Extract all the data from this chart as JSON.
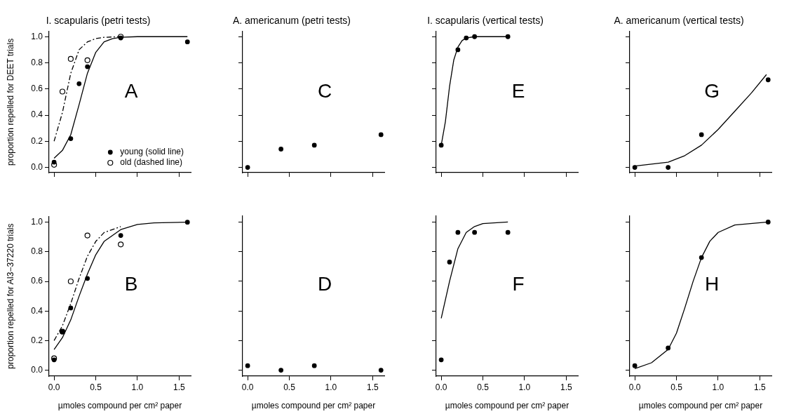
{
  "chart_data": [
    {
      "type": "scatter",
      "title": "I. scapularis (petri tests)",
      "ylabel": "proportion repelled for DEET trials",
      "xlim": [
        -0.06,
        1.64
      ],
      "ylim": [
        -0.04,
        1.04
      ],
      "xticks": [
        {
          "value": 0,
          "label": null
        },
        {
          "value": 0.5,
          "label": null
        },
        {
          "value": 1,
          "label": null
        },
        {
          "value": 1.5,
          "label": null
        }
      ],
      "yticks": [
        {
          "value": 0,
          "label": "0.0"
        },
        {
          "value": 0.2,
          "label": "0.2"
        },
        {
          "value": 0.4,
          "label": "0.4"
        },
        {
          "value": 0.6,
          "label": "0.6"
        },
        {
          "value": 0.8,
          "label": "0.8"
        },
        {
          "value": 1,
          "label": "1.0"
        }
      ],
      "tick_labels": "y",
      "legend": "bottom right",
      "annotations": [
        "A"
      ],
      "series": [
        {
          "name": "young (solid line)",
          "color": "#000000",
          "marker": "circle",
          "x": [
            0,
            0.2,
            0.3,
            0.4,
            0.8,
            1.6
          ],
          "values": [
            0.04,
            0.22,
            0.64,
            0.77,
            0.99,
            0.96
          ]
        },
        {
          "name": "old (dashed line)",
          "color": "#000000",
          "marker": "circle",
          "x": [
            0,
            0.1,
            0.2,
            0.4,
            0.8
          ],
          "values": [
            0.02,
            0.58,
            0.83,
            0.82,
            1.0
          ]
        },
        {
          "type": "line",
          "color": "#000000",
          "line_style": "solid",
          "x": [
            0,
            0.1,
            0.2,
            0.3,
            0.4,
            0.5,
            0.6,
            0.7,
            0.8,
            1.0,
            1.6
          ],
          "values": [
            0.07,
            0.13,
            0.25,
            0.48,
            0.72,
            0.88,
            0.96,
            0.985,
            0.995,
            1.0,
            1.0
          ]
        },
        {
          "type": "line",
          "color": "#000000",
          "line_style": "dashed",
          "x": [
            0,
            0.1,
            0.2,
            0.3,
            0.4,
            0.5,
            0.6,
            0.8
          ],
          "values": [
            0.2,
            0.42,
            0.72,
            0.9,
            0.96,
            0.985,
            0.995,
            1.0
          ]
        }
      ]
    },
    {
      "type": "scatter",
      "title": "A. americanum (petri tests)",
      "xlim": [
        -0.06,
        1.64
      ],
      "ylim": [
        -0.04,
        1.04
      ],
      "xticks": [
        {
          "value": 0,
          "label": null
        },
        {
          "value": 0.5,
          "label": null
        },
        {
          "value": 1,
          "label": null
        },
        {
          "value": 1.5,
          "label": null
        }
      ],
      "yticks": [
        {
          "value": 0,
          "label": null
        },
        {
          "value": 0.2,
          "label": null
        },
        {
          "value": 0.4,
          "label": null
        },
        {
          "value": 0.6,
          "label": null
        },
        {
          "value": 0.8,
          "label": null
        },
        {
          "value": 1,
          "label": null
        }
      ],
      "tick_labels": false,
      "annotations": [
        "C"
      ],
      "series": [
        {
          "color": "#000000",
          "marker": "circle",
          "x": [
            0,
            0.4,
            0.8,
            1.6
          ],
          "values": [
            0,
            0.14,
            0.17,
            0.25
          ]
        }
      ]
    },
    {
      "type": "scatter",
      "title": "I. scapularis (vertical tests)",
      "xlim": [
        -0.06,
        1.64
      ],
      "ylim": [
        -0.04,
        1.04
      ],
      "xticks": [
        {
          "value": 0,
          "label": null
        },
        {
          "value": 0.5,
          "label": null
        },
        {
          "value": 1,
          "label": null
        },
        {
          "value": 1.5,
          "label": null
        }
      ],
      "yticks": [
        {
          "value": 0,
          "label": null
        },
        {
          "value": 0.2,
          "label": null
        },
        {
          "value": 0.4,
          "label": null
        },
        {
          "value": 0.6,
          "label": null
        },
        {
          "value": 0.8,
          "label": null
        },
        {
          "value": 1,
          "label": null
        }
      ],
      "tick_labels": false,
      "annotations": [
        "E"
      ],
      "series": [
        {
          "color": "#000000",
          "marker": "circle",
          "x": [
            0,
            0.2,
            0.3,
            0.4,
            0.8
          ],
          "values": [
            0.17,
            0.9,
            0.99,
            1.0,
            1.0
          ]
        },
        {
          "type": "line",
          "color": "#000000",
          "line_style": "solid",
          "x": [
            0,
            0.05,
            0.1,
            0.15,
            0.2,
            0.25,
            0.3,
            0.4,
            0.8
          ],
          "values": [
            0.17,
            0.35,
            0.62,
            0.82,
            0.92,
            0.97,
            0.99,
            1.0,
            1.0
          ]
        }
      ]
    },
    {
      "type": "scatter",
      "title": "A. americanum (vertical tests)",
      "xlim": [
        -0.06,
        1.64
      ],
      "ylim": [
        -0.04,
        1.04
      ],
      "xticks": [
        {
          "value": 0,
          "label": null
        },
        {
          "value": 0.5,
          "label": null
        },
        {
          "value": 1,
          "label": null
        },
        {
          "value": 1.5,
          "label": null
        }
      ],
      "yticks": [
        {
          "value": 0,
          "label": null
        },
        {
          "value": 0.2,
          "label": null
        },
        {
          "value": 0.4,
          "label": null
        },
        {
          "value": 0.6,
          "label": null
        },
        {
          "value": 0.8,
          "label": null
        },
        {
          "value": 1,
          "label": null
        }
      ],
      "tick_labels": false,
      "annotations": [
        "G"
      ],
      "series": [
        {
          "color": "#000000",
          "marker": "circle",
          "x": [
            0,
            0.4,
            0.8,
            1.6
          ],
          "values": [
            0,
            0,
            0.25,
            0.67
          ]
        },
        {
          "type": "line",
          "color": "#000000",
          "line_style": "solid",
          "x": [
            0,
            0.4,
            0.6,
            0.8,
            1.0,
            1.2,
            1.4,
            1.58
          ],
          "values": [
            0.01,
            0.04,
            0.09,
            0.17,
            0.29,
            0.43,
            0.57,
            0.71
          ]
        }
      ]
    },
    {
      "type": "scatter",
      "xlabel": "µmoles compound per cm² paper",
      "ylabel": "proportion repelled for AI3−37220 trials",
      "xlim": [
        -0.06,
        1.64
      ],
      "ylim": [
        -0.04,
        1.04
      ],
      "xticks": [
        {
          "value": 0,
          "label": "0.0"
        },
        {
          "value": 0.5,
          "label": "0.5"
        },
        {
          "value": 1,
          "label": "1.0"
        },
        {
          "value": 1.5,
          "label": "1.5"
        }
      ],
      "yticks": [
        {
          "value": 0,
          "label": "0.0"
        },
        {
          "value": 0.2,
          "label": "0.2"
        },
        {
          "value": 0.4,
          "label": "0.4"
        },
        {
          "value": 0.6,
          "label": "0.6"
        },
        {
          "value": 0.8,
          "label": "0.8"
        },
        {
          "value": 1,
          "label": "1.0"
        }
      ],
      "annotations": [
        "B"
      ],
      "series": [
        {
          "color": "#000000",
          "marker": "circle",
          "x": [
            0,
            0.1,
            0.2,
            0.4,
            0.8,
            1.6
          ],
          "values": [
            0.07,
            0.26,
            0.42,
            0.62,
            0.91,
            1.0
          ]
        },
        {
          "color": "#000000",
          "marker": "circle",
          "x": [
            0,
            0.1,
            0.2,
            0.4,
            0.8
          ],
          "values": [
            0.08,
            0.26,
            0.6,
            0.91,
            0.85
          ]
        },
        {
          "type": "line",
          "color": "#000000",
          "line_style": "solid",
          "x": [
            0,
            0.1,
            0.2,
            0.3,
            0.4,
            0.5,
            0.6,
            0.8,
            1.0,
            1.2,
            1.6
          ],
          "values": [
            0.14,
            0.22,
            0.34,
            0.5,
            0.65,
            0.78,
            0.87,
            0.95,
            0.985,
            0.995,
            1.0
          ]
        },
        {
          "type": "line",
          "color": "#000000",
          "line_style": "dashed",
          "x": [
            0,
            0.1,
            0.2,
            0.3,
            0.4,
            0.5,
            0.6,
            0.8
          ],
          "values": [
            0.2,
            0.3,
            0.45,
            0.62,
            0.77,
            0.87,
            0.93,
            0.97
          ]
        }
      ]
    },
    {
      "type": "scatter",
      "xlabel": "µmoles compound per cm² paper",
      "xlim": [
        -0.06,
        1.64
      ],
      "ylim": [
        -0.04,
        1.04
      ],
      "xticks": [
        {
          "value": 0,
          "label": "0.0"
        },
        {
          "value": 0.5,
          "label": "0.5"
        },
        {
          "value": 1,
          "label": "1.0"
        },
        {
          "value": 1.5,
          "label": "1.5"
        }
      ],
      "yticks": [
        {
          "value": 0,
          "label": null
        },
        {
          "value": 0.2,
          "label": null
        },
        {
          "value": 0.4,
          "label": null
        },
        {
          "value": 0.6,
          "label": null
        },
        {
          "value": 0.8,
          "label": null
        },
        {
          "value": 1,
          "label": null
        }
      ],
      "tick_labels": "x",
      "annotations": [
        "D"
      ],
      "series": [
        {
          "color": "#000000",
          "marker": "circle",
          "x": [
            0,
            0.4,
            0.8,
            1.6
          ],
          "values": [
            0.03,
            0,
            0.03,
            0
          ]
        }
      ]
    },
    {
      "type": "scatter",
      "xlabel": "µmoles compound per cm² paper",
      "xlim": [
        -0.06,
        1.64
      ],
      "ylim": [
        -0.04,
        1.04
      ],
      "xticks": [
        {
          "value": 0,
          "label": "0.0"
        },
        {
          "value": 0.5,
          "label": "0.5"
        },
        {
          "value": 1,
          "label": "1.0"
        },
        {
          "value": 1.5,
          "label": "1.5"
        }
      ],
      "yticks": [
        {
          "value": 0,
          "label": null
        },
        {
          "value": 0.2,
          "label": null
        },
        {
          "value": 0.4,
          "label": null
        },
        {
          "value": 0.6,
          "label": null
        },
        {
          "value": 0.8,
          "label": null
        },
        {
          "value": 1,
          "label": null
        }
      ],
      "tick_labels": "x",
      "annotations": [
        "F"
      ],
      "series": [
        {
          "color": "#000000",
          "marker": "circle",
          "x": [
            0,
            0.1,
            0.2,
            0.4,
            0.8
          ],
          "values": [
            0.07,
            0.73,
            0.93,
            0.93,
            0.93
          ]
        },
        {
          "type": "line",
          "color": "#000000",
          "line_style": "solid",
          "x": [
            0,
            0.1,
            0.2,
            0.3,
            0.4,
            0.5,
            0.8
          ],
          "values": [
            0.35,
            0.6,
            0.82,
            0.93,
            0.97,
            0.99,
            1.0
          ]
        }
      ]
    },
    {
      "type": "scatter",
      "xlabel": "µmoles compound per cm² paper",
      "xlim": [
        -0.06,
        1.64
      ],
      "ylim": [
        -0.04,
        1.04
      ],
      "xticks": [
        {
          "value": 0,
          "label": "0.0"
        },
        {
          "value": 0.5,
          "label": "0.5"
        },
        {
          "value": 1,
          "label": "1.0"
        },
        {
          "value": 1.5,
          "label": "1.5"
        }
      ],
      "yticks": [
        {
          "value": 0,
          "label": null
        },
        {
          "value": 0.2,
          "label": null
        },
        {
          "value": 0.4,
          "label": null
        },
        {
          "value": 0.6,
          "label": null
        },
        {
          "value": 0.8,
          "label": null
        },
        {
          "value": 1,
          "label": null
        }
      ],
      "tick_labels": "x",
      "annotations": [
        "H"
      ],
      "series": [
        {
          "color": "#000000",
          "marker": "circle",
          "x": [
            0,
            0.4,
            0.8,
            1.6
          ],
          "values": [
            0.03,
            0.15,
            0.76,
            1.0
          ]
        },
        {
          "type": "line",
          "color": "#000000",
          "line_style": "solid",
          "x": [
            0,
            0.2,
            0.4,
            0.5,
            0.6,
            0.7,
            0.8,
            0.9,
            1.0,
            1.2,
            1.6
          ],
          "values": [
            0.01,
            0.05,
            0.14,
            0.25,
            0.42,
            0.6,
            0.76,
            0.87,
            0.93,
            0.98,
            1.0
          ]
        }
      ]
    }
  ]
}
